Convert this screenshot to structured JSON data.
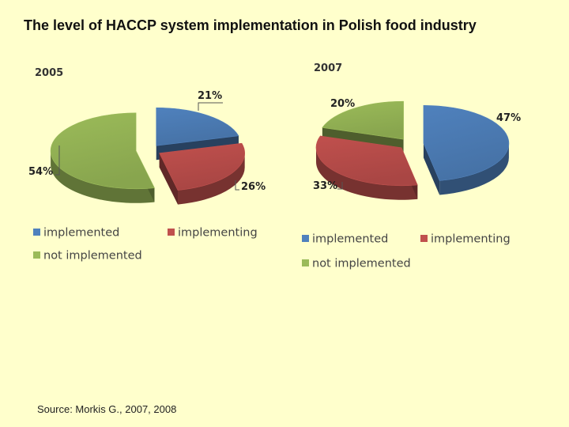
{
  "slide": {
    "title": "The level of HACCP system implementation in Polish food industry",
    "source": "Source: Morkis G., 2007, 2008"
  },
  "colors": {
    "background": "#ffffcc",
    "implemented": "#4f81bd",
    "implementing": "#c0504d",
    "not_implemented": "#9bbb59"
  },
  "chart_data": [
    {
      "type": "pie",
      "title": "2005",
      "categories": [
        "implemented",
        "implementing",
        "not implemented"
      ],
      "values": [
        21,
        26,
        54
      ],
      "data_labels": [
        "21%",
        "26%",
        "54%"
      ],
      "legend": [
        "implemented",
        "implementing",
        "not implemented"
      ],
      "legend_position": "bottom",
      "style": "3d-exploded"
    },
    {
      "type": "pie",
      "title": "2007",
      "categories": [
        "implemented",
        "implementing",
        "not implemented"
      ],
      "values": [
        47,
        33,
        20
      ],
      "data_labels": [
        "47%",
        "33%",
        "20%"
      ],
      "legend": [
        "implemented",
        "implementing",
        "not implemented"
      ],
      "legend_position": "bottom",
      "style": "3d-exploded"
    }
  ]
}
